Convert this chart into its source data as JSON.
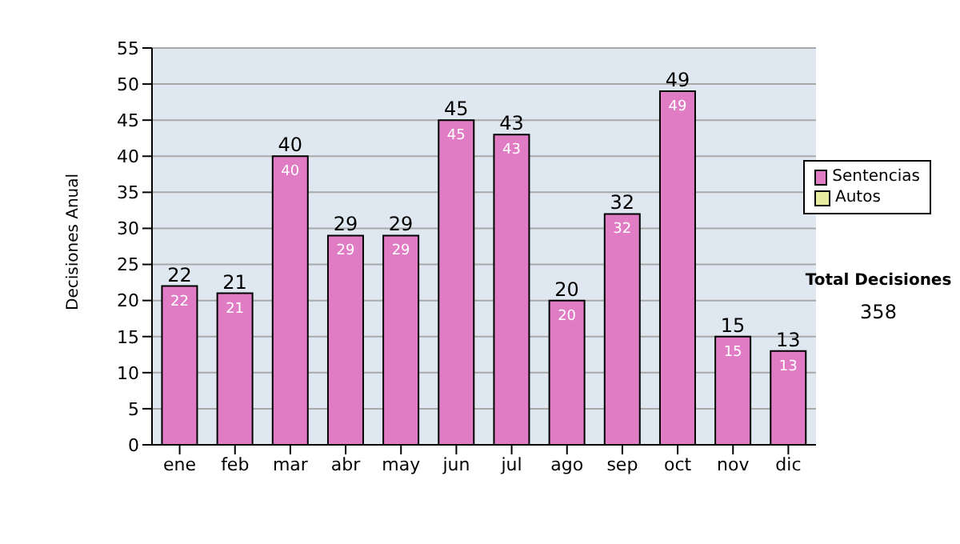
{
  "chart_data": {
    "type": "bar",
    "stacked": true,
    "ylabel": "Decisiones Anual",
    "categories": [
      "ene",
      "feb",
      "mar",
      "abr",
      "may",
      "jun",
      "jul",
      "ago",
      "sep",
      "oct",
      "nov",
      "dic"
    ],
    "series": [
      {
        "name": "Sentencias",
        "color": "#e07cc4",
        "values": [
          22,
          21,
          40,
          29,
          29,
          45,
          43,
          20,
          32,
          49,
          15,
          13
        ],
        "value_labels": [
          "22",
          "21",
          "40",
          "29",
          "29",
          "45",
          "43",
          "20",
          "32",
          "49",
          "15",
          "13"
        ]
      },
      {
        "name": "Autos",
        "color": "#e8eca0",
        "values": [
          null,
          null,
          null,
          null,
          null,
          null,
          null,
          null,
          null,
          null,
          null,
          null
        ]
      }
    ],
    "totals": [
      "22",
      "21",
      "40",
      "29",
      "29",
      "45",
      "43",
      "20",
      "32",
      "49",
      "15",
      "13"
    ],
    "ylim": [
      0,
      55
    ],
    "yticks": [
      0,
      5,
      10,
      15,
      20,
      25,
      30,
      35,
      40,
      45,
      50,
      55
    ],
    "grid": "y",
    "legend": "right",
    "annotations": [
      "Total Decisiones",
      "358"
    ]
  }
}
